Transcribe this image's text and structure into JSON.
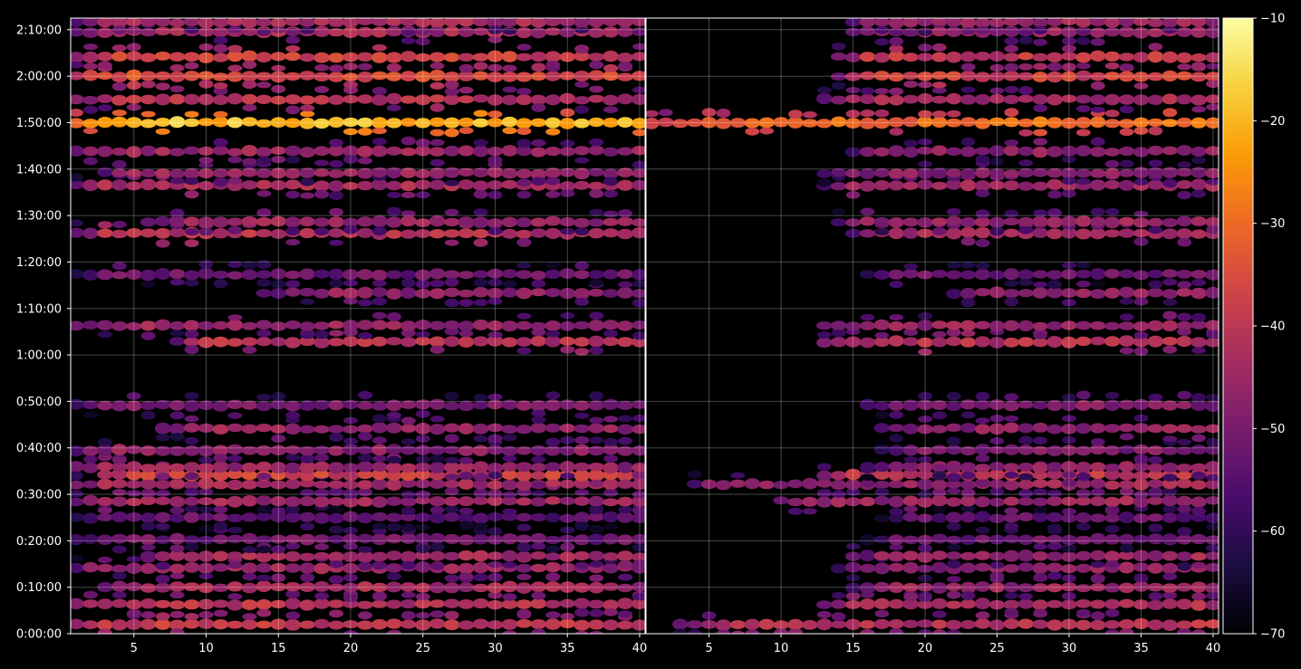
{
  "chart_data": {
    "type": "heatmap",
    "title": "",
    "xlabel": "",
    "ylabel": "",
    "grid": true,
    "background": "#000000",
    "colormap": "inferno",
    "colormap_stops": [
      "#000004",
      "#1b0c41",
      "#4a0c6b",
      "#781c6d",
      "#a52c60",
      "#cf4446",
      "#ed6925",
      "#fb9b06",
      "#f7d13d",
      "#fcffa4"
    ],
    "color_range": [
      -70,
      -10
    ],
    "colorbar_ticks": [
      "−10",
      "−20",
      "−30",
      "−40",
      "−50",
      "−60",
      "−70"
    ],
    "colorbar_tick_values": [
      -10,
      -20,
      -30,
      -40,
      -50,
      -60,
      -70
    ],
    "y_range_seconds": [
      0,
      7950
    ],
    "y_ticks": [
      "0:00:00",
      "0:10:00",
      "0:20:00",
      "0:30:00",
      "0:40:00",
      "0:50:00",
      "1:00:00",
      "1:10:00",
      "1:20:00",
      "1:30:00",
      "1:40:00",
      "1:50:00",
      "2:00:00",
      "2:10:00"
    ],
    "y_tick_values": [
      0,
      600,
      1200,
      1800,
      2400,
      3000,
      3600,
      4200,
      4800,
      5400,
      6000,
      6600,
      7200,
      7800
    ],
    "panels": [
      {
        "name": "left",
        "x_range": [
          1,
          40
        ],
        "x_ticks": [
          "5",
          "10",
          "15",
          "20",
          "25",
          "30",
          "35",
          "40"
        ],
        "x_tick_values": [
          5,
          10,
          15,
          20,
          25,
          30,
          35,
          40
        ],
        "x_onset": [
          1,
          1,
          3,
          1,
          6,
          1,
          1,
          1,
          1,
          3,
          1,
          1,
          7,
          1,
          8,
          1,
          14,
          1,
          1,
          6,
          1,
          3,
          1,
          1,
          1,
          1,
          1,
          1,
          1
        ],
        "rows": [
          {
            "t": 120,
            "v": -40
          },
          {
            "t": 380,
            "v": -42
          },
          {
            "t": 600,
            "v": -44
          },
          {
            "t": 850,
            "v": -46
          },
          {
            "t": 1000,
            "v": -44
          },
          {
            "t": 1220,
            "v": -52
          },
          {
            "t": 1500,
            "v": -54
          },
          {
            "t": 1710,
            "v": -45
          },
          {
            "t": 1930,
            "v": -44
          },
          {
            "t": 2050,
            "v": -38
          },
          {
            "t": 2150,
            "v": -46
          },
          {
            "t": 2370,
            "v": -48
          },
          {
            "t": 2650,
            "v": -46
          },
          {
            "t": 2950,
            "v": -50
          },
          {
            "t": 3770,
            "v": -42
          },
          {
            "t": 3980,
            "v": -46
          },
          {
            "t": 4400,
            "v": -47
          },
          {
            "t": 4640,
            "v": -52
          },
          {
            "t": 5170,
            "v": -42
          },
          {
            "t": 5320,
            "v": -46
          },
          {
            "t": 5790,
            "v": -44
          },
          {
            "t": 5950,
            "v": -46
          },
          {
            "t": 6230,
            "v": -46
          },
          {
            "t": 6600,
            "v": -20
          },
          {
            "t": 6900,
            "v": -42
          },
          {
            "t": 7200,
            "v": -36
          },
          {
            "t": 7450,
            "v": -38
          },
          {
            "t": 7770,
            "v": -44
          },
          {
            "t": 7900,
            "v": -44
          }
        ]
      },
      {
        "name": "right",
        "x_range": [
          1,
          40
        ],
        "x_ticks": [
          "5",
          "10",
          "15",
          "20",
          "25",
          "30",
          "35",
          "40"
        ],
        "x_tick_values": [
          5,
          10,
          15,
          20,
          25,
          30,
          35,
          40
        ],
        "x_onset": [
          3,
          13,
          15,
          14,
          15,
          16,
          17,
          10,
          4,
          13,
          16,
          17,
          17,
          16,
          13,
          13,
          22,
          16,
          15,
          14,
          13,
          13,
          15,
          1,
          13,
          14,
          14,
          15,
          15
        ],
        "rows": [
          {
            "t": 120,
            "v": -42
          },
          {
            "t": 380,
            "v": -44
          },
          {
            "t": 600,
            "v": -46
          },
          {
            "t": 850,
            "v": -48
          },
          {
            "t": 1000,
            "v": -46
          },
          {
            "t": 1220,
            "v": -52
          },
          {
            "t": 1500,
            "v": -54
          },
          {
            "t": 1710,
            "v": -46
          },
          {
            "t": 1930,
            "v": -46
          },
          {
            "t": 2050,
            "v": -40
          },
          {
            "t": 2150,
            "v": -48
          },
          {
            "t": 2370,
            "v": -50
          },
          {
            "t": 2650,
            "v": -48
          },
          {
            "t": 2950,
            "v": -50
          },
          {
            "t": 3770,
            "v": -42
          },
          {
            "t": 3980,
            "v": -46
          },
          {
            "t": 4400,
            "v": -47
          },
          {
            "t": 4640,
            "v": -52
          },
          {
            "t": 5170,
            "v": -44
          },
          {
            "t": 5320,
            "v": -46
          },
          {
            "t": 5790,
            "v": -46
          },
          {
            "t": 5950,
            "v": -48
          },
          {
            "t": 6230,
            "v": -48
          },
          {
            "t": 6600,
            "v": -30
          },
          {
            "t": 6900,
            "v": -44
          },
          {
            "t": 7200,
            "v": -38
          },
          {
            "t": 7450,
            "v": -40
          },
          {
            "t": 7770,
            "v": -46
          },
          {
            "t": 7900,
            "v": -46
          }
        ]
      }
    ]
  }
}
